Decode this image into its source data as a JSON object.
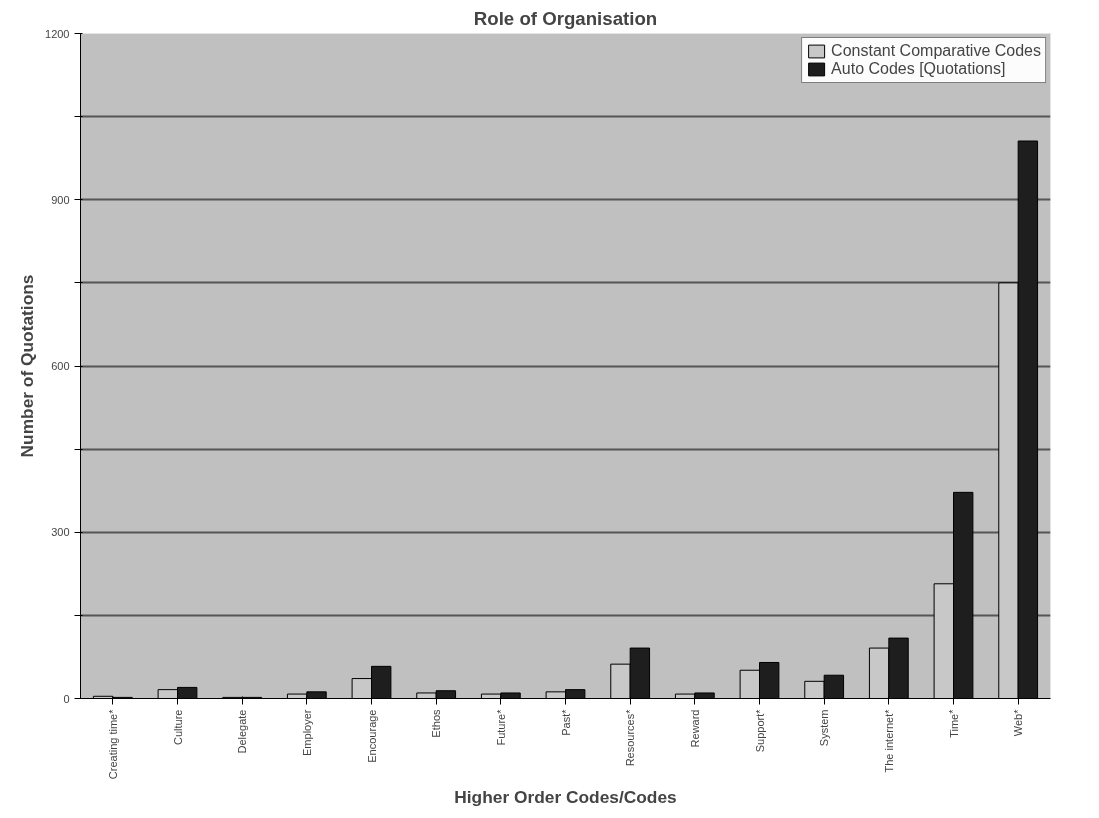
{
  "chart_data": {
    "type": "bar",
    "title": "Role of Organisation",
    "xlabel": "Higher Order Codes/Codes",
    "ylabel": "Number of Quotations",
    "categories": [
      "Creating time*",
      "Culture",
      "Delegate",
      "Employer",
      "Encourage",
      "Ethos",
      "Future*",
      "Past*",
      "Resources*",
      "Reward",
      "Support*",
      "System",
      "The internet*",
      "Time*",
      "Web*"
    ],
    "series": [
      {
        "name": "Constant Comparative Codes",
        "color": "#c8c8c8",
        "values": [
          4,
          16,
          2,
          8,
          36,
          10,
          8,
          12,
          62,
          8,
          51,
          31,
          91,
          207,
          750
        ]
      },
      {
        "name": "Auto Codes [Quotations]",
        "color": "#1e1e1e",
        "values": [
          2,
          20,
          2,
          12,
          58,
          14,
          10,
          16,
          91,
          10,
          65,
          42,
          109,
          372,
          1006
        ]
      }
    ],
    "ylim": [
      0,
      1200
    ],
    "yticks": [
      0,
      {
        "value": 150,
        "label": null
      },
      300,
      {
        "value": 450,
        "label": null
      },
      600,
      {
        "value": 750,
        "label": null
      },
      900,
      {
        "value": 1050,
        "label": null
      },
      1200
    ],
    "grid": "y",
    "legend": "top right"
  }
}
